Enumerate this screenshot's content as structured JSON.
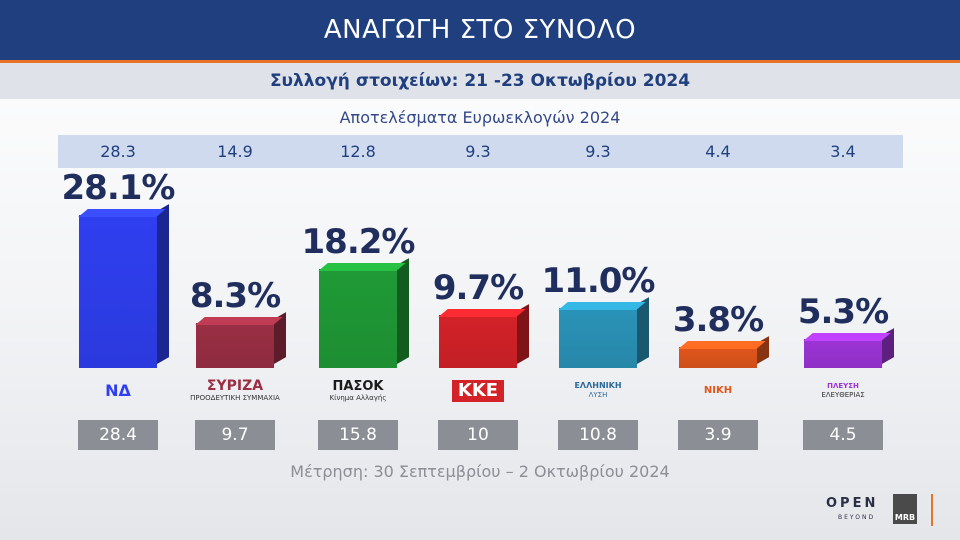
{
  "header": {
    "title": "ΑΝΑΓΩΓΗ ΣΤΟ ΣΥΝΟΛΟ",
    "subtitle": "Συλλογή στοιχείων: 21 -23 Οκτωβρίου 2024"
  },
  "euro": {
    "label": "Αποτελέσματα Ευρωεκλογών 2024",
    "values": [
      "28.3",
      "14.9",
      "12.8",
      "9.3",
      "9.3",
      "4.4",
      "3.4"
    ]
  },
  "measurement": "Μέτρηση: 30 Σεπτεμβρίου – 2 Οκτωβρίου 2024",
  "footer": {
    "open": "OPEN",
    "open_sub": "BEYOND",
    "mrb": "MRB"
  },
  "colors": {
    "nd": "#2f3ff0",
    "syriza": "#9a2f44",
    "pasok": "#1f9a36",
    "kke": "#d32228",
    "el": "#2a93b8",
    "niki": "#e0561c",
    "plefsi": "#9b34d6"
  },
  "chart_data": {
    "type": "bar",
    "categories": [
      "ΝΔ",
      "ΣΥΡΙΖΑ",
      "ΠΑΣΟΚ",
      "ΚΚΕ",
      "ΕΛΛΗΝΙΚΗ ΛΥΣΗ",
      "ΝΙΚΗ",
      "ΠΛΕΥΣΗ ΕΛΕΥΘΕΡΙΑΣ"
    ],
    "values": [
      28.1,
      8.3,
      18.2,
      9.7,
      11.0,
      3.8,
      5.3
    ],
    "labels": [
      "28.1%",
      "8.3%",
      "18.2%",
      "9.7%",
      "11.0%",
      "3.8%",
      "5.3%"
    ],
    "previous": [
      "28.4",
      "9.7",
      "15.8",
      "10",
      "10.8",
      "3.9",
      "4.5"
    ],
    "euro_2024": [
      "28.3",
      "14.9",
      "12.8",
      "9.3",
      "9.3",
      "4.4",
      "3.4"
    ],
    "title": "ΑΝΑΓΩΓΗ ΣΤΟ ΣΥΝΟΛΟ",
    "xlabel": "",
    "ylabel": "",
    "ylim": [
      0,
      30
    ],
    "grid": false,
    "legend": "none"
  },
  "logos": [
    {
      "main": "ΝΔ",
      "sub": ""
    },
    {
      "main": "ΣΥΡΙΖΑ",
      "sub": "ΠΡΟΟΔΕΥΤΙΚΗ ΣΥΜΜΑΧΙΑ"
    },
    {
      "main": "ΠΑΣΟΚ",
      "sub": "Κίνημα Αλλαγής"
    },
    {
      "main": "ΚΚΕ",
      "sub": ""
    },
    {
      "main": "ΕΛΛΗΝΙΚΗ",
      "sub": "ΛΥΣΗ"
    },
    {
      "main": "ΝΙΚΗ",
      "sub": ""
    },
    {
      "main": "ΠΛΕΥΣΗ",
      "sub": "ΕΛΕΥΘΕΡΙΑΣ"
    }
  ]
}
